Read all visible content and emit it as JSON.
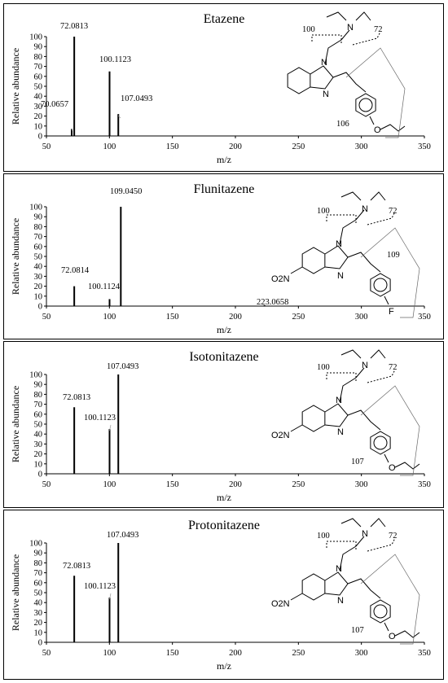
{
  "chart_data": [
    {
      "type": "bar",
      "title": "Etazene",
      "xlabel": "m/z",
      "ylabel": "Relative abundance",
      "xlim": [
        50,
        350
      ],
      "ylim": [
        0,
        100
      ],
      "xticks": [
        "50",
        "100",
        "150",
        "200",
        "250",
        "300",
        "350"
      ],
      "yticks": [
        "0",
        "10",
        "20",
        "30",
        "40",
        "50",
        "60",
        "70",
        "80",
        "90",
        "100"
      ],
      "peaks": [
        {
          "x": 70.0657,
          "y": 7,
          "label": "70.0657"
        },
        {
          "x": 72.0813,
          "y": 100,
          "label": "72.0813"
        },
        {
          "x": 100.1123,
          "y": 65,
          "label": "100.1123"
        },
        {
          "x": 107.0493,
          "y": 22,
          "label": "107.0493"
        }
      ],
      "structure": {
        "fragment_labels": [
          "100",
          "72",
          "106"
        ],
        "atoms": [
          "N",
          "N",
          "N",
          "O"
        ]
      }
    },
    {
      "type": "bar",
      "title": "Flunitazene",
      "xlabel": "m/z",
      "ylabel": "Relative abundance",
      "xlim": [
        50,
        350
      ],
      "ylim": [
        0,
        100
      ],
      "xticks": [
        "50",
        "100",
        "150",
        "200",
        "250",
        "300",
        "350"
      ],
      "yticks": [
        "0",
        "10",
        "20",
        "30",
        "40",
        "50",
        "60",
        "70",
        "80",
        "90",
        "100"
      ],
      "peaks": [
        {
          "x": 72.0814,
          "y": 20,
          "label": "72.0814"
        },
        {
          "x": 100.1124,
          "y": 7,
          "label": "100.1124"
        },
        {
          "x": 109.045,
          "y": 100,
          "label": "109.0450"
        },
        {
          "x": 223.0658,
          "y": 1,
          "label": "223.0658"
        }
      ],
      "structure": {
        "fragment_labels": [
          "100",
          "72",
          "109"
        ],
        "atoms": [
          "N",
          "N",
          "N",
          "F"
        ],
        "nitro": "O2N"
      }
    },
    {
      "type": "bar",
      "title": "Isotonitazene",
      "xlabel": "m/z",
      "ylabel": "Relative abundance",
      "xlim": [
        50,
        350
      ],
      "ylim": [
        0,
        100
      ],
      "xticks": [
        "50",
        "100",
        "150",
        "200",
        "250",
        "300",
        "350"
      ],
      "yticks": [
        "0",
        "10",
        "20",
        "30",
        "40",
        "50",
        "60",
        "70",
        "80",
        "90",
        "100"
      ],
      "peaks": [
        {
          "x": 72.0813,
          "y": 67,
          "label": "72.0813"
        },
        {
          "x": 100.1123,
          "y": 45,
          "label": "100.1123"
        },
        {
          "x": 107.0493,
          "y": 100,
          "label": "107.0493"
        }
      ],
      "structure": {
        "fragment_labels": [
          "100",
          "72",
          "107"
        ],
        "atoms": [
          "N",
          "N",
          "N",
          "O"
        ],
        "nitro": "O2N"
      }
    },
    {
      "type": "bar",
      "title": "Protonitazene",
      "xlabel": "m/z",
      "ylabel": "Relative abundance",
      "xlim": [
        50,
        350
      ],
      "ylim": [
        0,
        100
      ],
      "xticks": [
        "50",
        "100",
        "150",
        "200",
        "250",
        "300",
        "350"
      ],
      "yticks": [
        "0",
        "10",
        "20",
        "30",
        "40",
        "50",
        "60",
        "70",
        "80",
        "90",
        "100"
      ],
      "peaks": [
        {
          "x": 72.0813,
          "y": 67,
          "label": "72.0813"
        },
        {
          "x": 100.1123,
          "y": 45,
          "label": "100.1123"
        },
        {
          "x": 107.0493,
          "y": 100,
          "label": "107.0493"
        }
      ],
      "structure": {
        "fragment_labels": [
          "100",
          "72",
          "107"
        ],
        "atoms": [
          "N",
          "N",
          "N",
          "O"
        ],
        "nitro": "O2N"
      }
    }
  ]
}
